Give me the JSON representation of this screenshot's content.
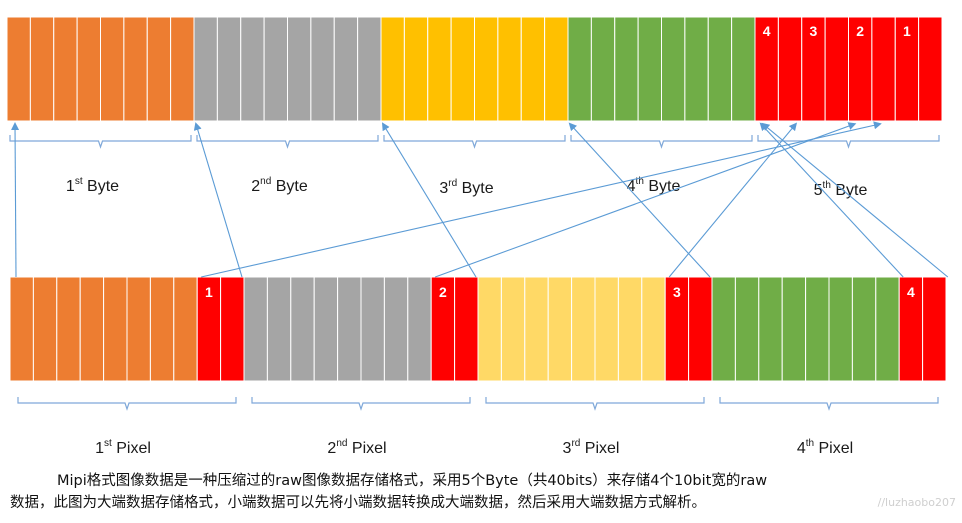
{
  "colors": {
    "orange": "#ED7D31",
    "gray": "#A5A5A5",
    "gold": "#FFC000",
    "green": "#70AD47",
    "red": "#FF0000",
    "light_gold": "#FFD966",
    "cell_divider": "#ffffff",
    "arrow": "#5B9BD5",
    "brace": "#7FA8D9"
  },
  "byte_row": {
    "bytes": [
      {
        "color": "orange",
        "cells": 8
      },
      {
        "color": "gray",
        "cells": 8
      },
      {
        "color": "gold",
        "cells": 8
      },
      {
        "color": "green",
        "cells": 8
      },
      {
        "color": "red",
        "cells": 8
      }
    ],
    "fifth_byte_cell_labels": [
      "4",
      "3",
      "2",
      "1"
    ],
    "labels": [
      {
        "num": "1",
        "suffix": "st",
        "word": "Byte"
      },
      {
        "num": "2",
        "suffix": "nd",
        "word": "Byte"
      },
      {
        "num": "3",
        "suffix": "rd",
        "word": "Byte"
      },
      {
        "num": "4",
        "suffix": "th",
        "word": "Byte"
      },
      {
        "num": "5",
        "suffix": "th",
        "word": "Byte"
      }
    ]
  },
  "pixel_row": {
    "pixels": [
      {
        "main_color": "orange",
        "main_cells": 8,
        "low_bits_label": "1"
      },
      {
        "main_color": "gray",
        "main_cells": 8,
        "low_bits_label": "2"
      },
      {
        "main_color": "light_gold",
        "main_cells": 8,
        "low_bits_label": "3"
      },
      {
        "main_color": "green",
        "main_cells": 8,
        "low_bits_label": "4"
      }
    ],
    "labels": [
      {
        "num": "1",
        "suffix": "st",
        "word": "Pixel"
      },
      {
        "num": "2",
        "suffix": "nd",
        "word": "Pixel"
      },
      {
        "num": "3",
        "suffix": "rd",
        "word": "Pixel"
      },
      {
        "num": "4",
        "suffix": "th",
        "word": "Pixel"
      }
    ]
  },
  "caption": {
    "line1": "Mipi格式图像数据是一种压缩过的raw图像数据存储格式，采用5个Byte（共40bits）来存储4个10bit宽的raw",
    "line2": "数据，此图为大端数据存储格式，小端数据可以先将小端数据转换成大端数据，然后采用大端数据方式解析。"
  },
  "watermark": "//luzhaobo207"
}
